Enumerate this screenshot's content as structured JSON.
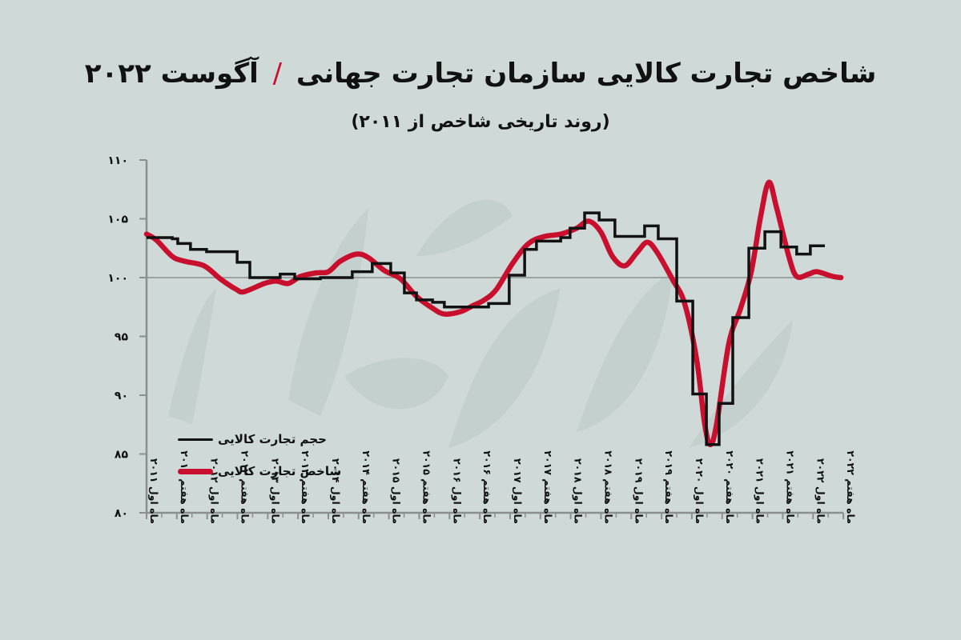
{
  "header": {
    "title_main": "شاخص تجارت کالایی سازمان تجارت جهانی",
    "title_separator": "/",
    "title_date": "آگوست ۲۰۲۲",
    "subtitle": "(روند تاریخی شاخص از ۲۰۱۱)"
  },
  "legend": {
    "items": [
      {
        "label": "حجم تجارت کالایی",
        "color": "#111111"
      },
      {
        "label": "شاخص تجارت کالایی",
        "color": "#c8102e"
      }
    ]
  },
  "colors": {
    "background": "#cfd9d8",
    "volume_line": "#111111",
    "index_line": "#c8102e",
    "axis": "#8c8f8f",
    "baseline": "#9aa3a2",
    "watermark": "#bcc8c5",
    "title_accent": "#c8102e"
  },
  "chart_data": {
    "type": "line",
    "title": "شاخص تجارت کالایی سازمان تجارت جهانی / آگوست ۲۰۲۲",
    "subtitle": "(روند تاریخی شاخص از ۲۰۱۱)",
    "xlabel": "",
    "ylabel": "",
    "ylim": [
      80,
      110
    ],
    "yticks": [
      110,
      105,
      100,
      95,
      90,
      85,
      80
    ],
    "ytick_labels": [
      "۱۱۰",
      "۱۰۵",
      "۱۰۰",
      "۹۵",
      "۹۰",
      "۸۵",
      "۸۰"
    ],
    "reference_line": 100,
    "grid": false,
    "legend_position": "lower-left",
    "categories": [
      "ماه اول ۲۰۱۱",
      "ماه هفتم ۲۰۱۱",
      "ماه اول ۲۰۱۲",
      "ماه هفتم ۲۰۱۲",
      "ماه اول ۲۰۱۳",
      "ماه هفتم ۲۰۱۳",
      "ماه اول ۲۰۱۴",
      "ماه هفتم ۲۰۱۴",
      "ماه اول ۲۰۱۵",
      "ماه هفتم ۲۰۱۵",
      "ماه اول ۲۰۱۶",
      "ماه هفتم ۲۰۱۶",
      "ماه اول ۲۰۱۷",
      "ماه هفتم ۲۰۱۷",
      "ماه اول ۲۰۱۸",
      "ماه هفتم ۲۰۱۸",
      "ماه اول ۲۰۱۹",
      "ماه هفتم ۲۰۱۹",
      "ماه اول ۲۰۲۰",
      "ماه هفتم ۲۰۲۰",
      "ماه اول ۲۰۲۱",
      "ماه هفتم ۲۰۲۱",
      "ماه اول ۲۰۲۲",
      "ماه هفتم ۲۰۲۲"
    ],
    "series": [
      {
        "name": "حجم تجارت کالایی",
        "style": "step",
        "color": "#111111",
        "points": [
          [
            0,
            103.4
          ],
          [
            0.85,
            103.3
          ],
          [
            1.03,
            102.9
          ],
          [
            1.45,
            102.4
          ],
          [
            1.98,
            102.2
          ],
          [
            2.99,
            101.3
          ],
          [
            3.41,
            100.0
          ],
          [
            4.41,
            100.3
          ],
          [
            4.89,
            99.9
          ],
          [
            5.74,
            100.0
          ],
          [
            6.79,
            100.5
          ],
          [
            7.45,
            101.2
          ],
          [
            8.06,
            100.4
          ],
          [
            8.51,
            98.7
          ],
          [
            8.91,
            98.1
          ],
          [
            9.44,
            97.9
          ],
          [
            9.83,
            97.5
          ],
          [
            11.29,
            97.8
          ],
          [
            11.97,
            100.2
          ],
          [
            12.48,
            102.4
          ],
          [
            12.87,
            103.1
          ],
          [
            13.67,
            103.4
          ],
          [
            13.98,
            104.2
          ],
          [
            14.46,
            105.5
          ],
          [
            14.94,
            104.9
          ],
          [
            15.46,
            103.5
          ],
          [
            16.44,
            104.4
          ],
          [
            16.89,
            103.3
          ],
          [
            17.5,
            98.0
          ],
          [
            18.03,
            90.1
          ],
          [
            18.48,
            85.8
          ],
          [
            18.9,
            89.3
          ],
          [
            19.35,
            96.6
          ],
          [
            19.88,
            102.5
          ],
          [
            20.41,
            103.9
          ],
          [
            20.94,
            102.6
          ],
          [
            21.46,
            102.0
          ],
          [
            21.91,
            102.7
          ],
          [
            22.39,
            102.7
          ]
        ]
      },
      {
        "name": "شاخص تجارت کالایی",
        "style": "smooth",
        "color": "#c8102e",
        "points": [
          [
            0,
            103.7
          ],
          [
            0.32,
            103.2
          ],
          [
            0.85,
            101.8
          ],
          [
            1.24,
            101.4
          ],
          [
            1.9,
            101.0
          ],
          [
            2.43,
            99.9
          ],
          [
            2.96,
            99.0
          ],
          [
            3.22,
            98.8
          ],
          [
            3.89,
            99.5
          ],
          [
            4.28,
            99.7
          ],
          [
            4.68,
            99.5
          ],
          [
            5.08,
            100.1
          ],
          [
            5.6,
            100.4
          ],
          [
            6.0,
            100.5
          ],
          [
            6.4,
            101.4
          ],
          [
            6.93,
            102.0
          ],
          [
            7.32,
            101.7
          ],
          [
            7.85,
            100.6
          ],
          [
            8.38,
            99.9
          ],
          [
            8.91,
            98.4
          ],
          [
            9.44,
            97.4
          ],
          [
            9.83,
            96.9
          ],
          [
            10.36,
            97.1
          ],
          [
            10.76,
            97.6
          ],
          [
            11.15,
            98.1
          ],
          [
            11.55,
            99.0
          ],
          [
            12.08,
            101.2
          ],
          [
            12.61,
            102.9
          ],
          [
            13.14,
            103.5
          ],
          [
            13.67,
            103.7
          ],
          [
            14.2,
            104.2
          ],
          [
            14.59,
            104.8
          ],
          [
            14.99,
            103.9
          ],
          [
            15.38,
            101.8
          ],
          [
            15.78,
            101.0
          ],
          [
            16.18,
            102.1
          ],
          [
            16.52,
            103.0
          ],
          [
            16.84,
            102.2
          ],
          [
            17.37,
            99.8
          ],
          [
            17.76,
            97.8
          ],
          [
            18.16,
            93.0
          ],
          [
            18.42,
            87.6
          ],
          [
            18.61,
            85.8
          ],
          [
            18.82,
            87.6
          ],
          [
            19.22,
            94.4
          ],
          [
            19.61,
            97.4
          ],
          [
            19.96,
            100.5
          ],
          [
            20.27,
            105.2
          ],
          [
            20.54,
            108.1
          ],
          [
            20.8,
            105.9
          ],
          [
            21.2,
            101.8
          ],
          [
            21.46,
            100.1
          ],
          [
            21.86,
            100.3
          ],
          [
            22.13,
            100.5
          ],
          [
            22.65,
            100.1
          ],
          [
            22.92,
            100.0
          ]
        ]
      }
    ]
  }
}
